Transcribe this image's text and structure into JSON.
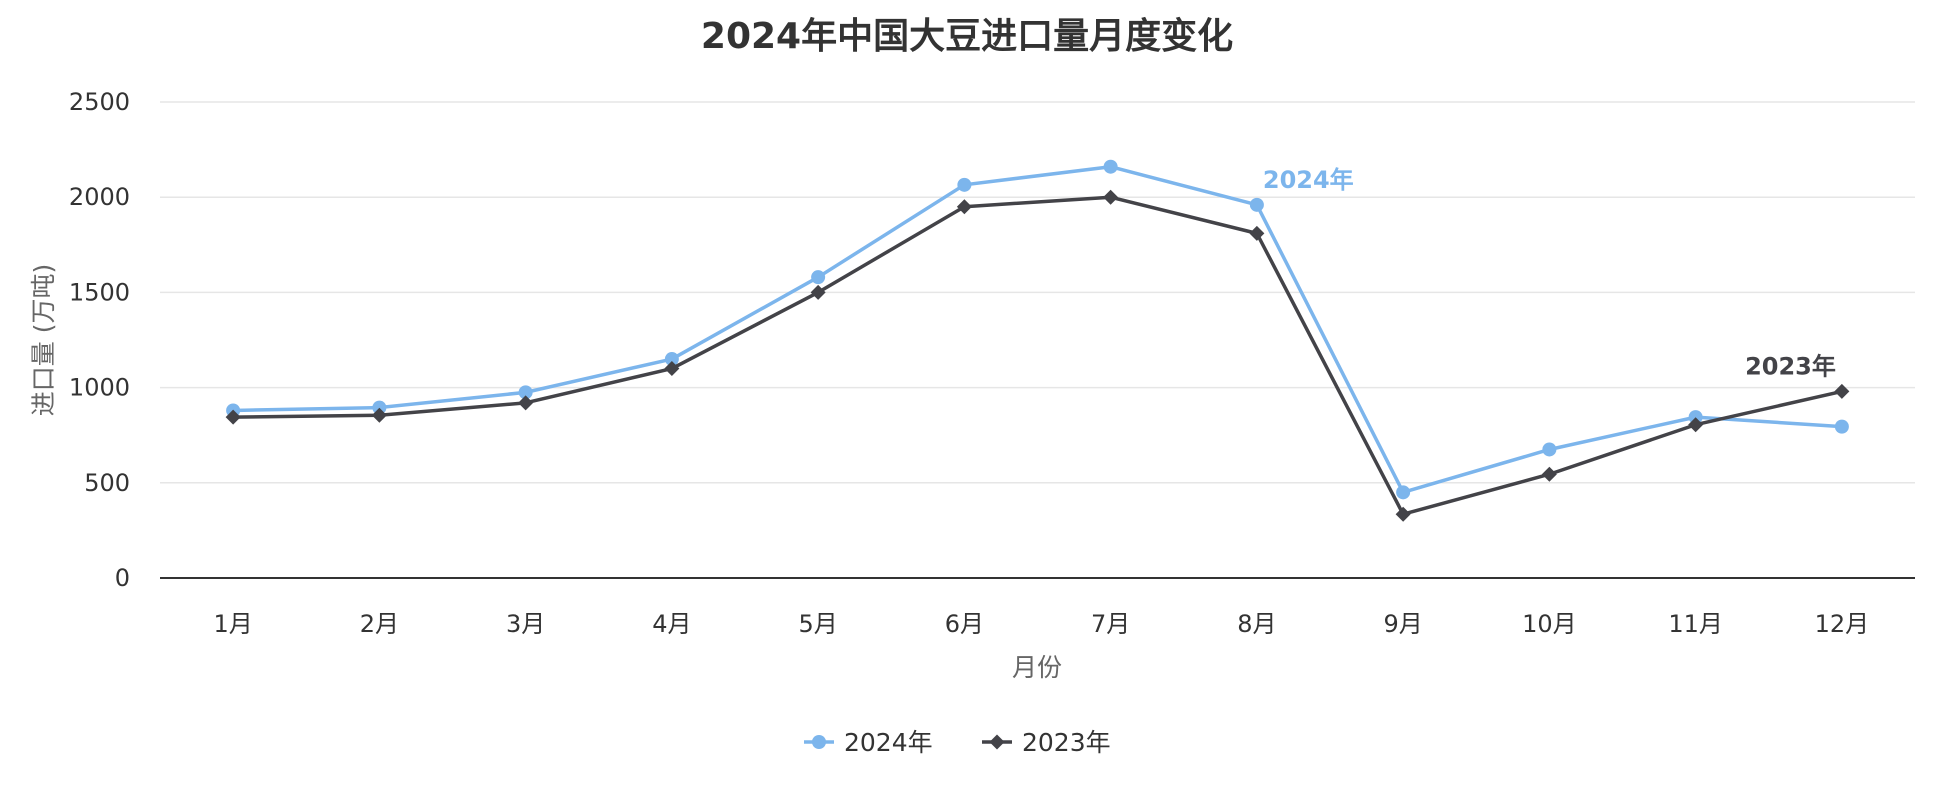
{
  "chart_data": {
    "type": "line",
    "title": "2024年中国大豆进口量月度变化",
    "xlabel": "月份",
    "ylabel": "进口量 (万吨)",
    "categories": [
      "1月",
      "2月",
      "3月",
      "4月",
      "5月",
      "6月",
      "7月",
      "8月",
      "9月",
      "10月",
      "11月",
      "12月"
    ],
    "ylim": [
      0,
      2500
    ],
    "yticks": [
      "0",
      "500",
      "1000",
      "1500",
      "2000",
      "2500"
    ],
    "grid": true,
    "legend_position": "bottom",
    "series": [
      {
        "name": "2024年",
        "color": "#7cb5ec",
        "marker": "circle",
        "values": [
          880,
          895,
          975,
          1150,
          1580,
          2065,
          2160,
          1960,
          450,
          675,
          845,
          795
        ]
      },
      {
        "name": "2023年",
        "color": "#434348",
        "marker": "diamond",
        "values": [
          845,
          855,
          920,
          1100,
          1500,
          1950,
          2000,
          1810,
          335,
          545,
          805,
          980
        ]
      }
    ],
    "annotations": [
      {
        "text": "2024年",
        "series": 0,
        "category": "8月",
        "color": "#7cb5ec"
      },
      {
        "text": "2023年",
        "series": 1,
        "category": "12月",
        "color": "#434348"
      }
    ]
  }
}
